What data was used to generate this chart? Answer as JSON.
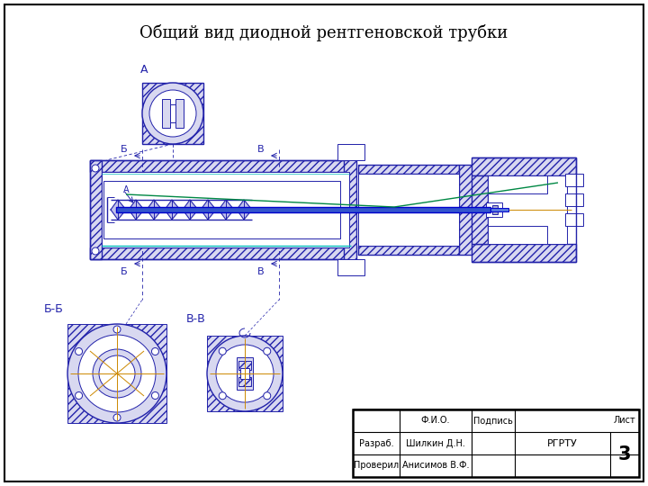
{
  "title": "Общий вид диодной рентгеновской трубки",
  "title_fontsize": 13,
  "bg_color": "#ffffff",
  "dc": "#2222aa",
  "dc_dark": "#000080",
  "cyan_color": "#00bbbb",
  "green_color": "#008844",
  "orange_color": "#cc8800",
  "col2_label": "Ф.И.О.",
  "col3_label": "Подпись",
  "col4_label": "РГРТУ",
  "col5_label": "Лист",
  "row1_col1": "Разраб.",
  "row1_col2": "Шилкин Д.Н.",
  "row2_col1": "Проверил",
  "row2_col2": "Анисимов В.Ф.",
  "sheet_number": "3",
  "label_A": "A",
  "label_B": "Б",
  "label_V": "В",
  "label_BB": "Б-Б",
  "label_VV": "В-В",
  "label_A2": "A"
}
